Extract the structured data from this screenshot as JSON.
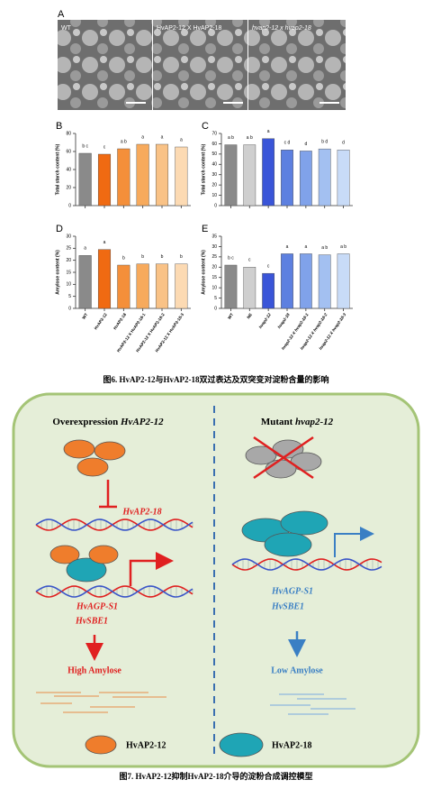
{
  "panel_a": {
    "label": "A",
    "images": [
      "WT",
      "HvAP2-12 X HvAP2-18",
      "hvap2-12 x hvap2-18"
    ]
  },
  "chart_data": [
    {
      "type": "bar",
      "panel": "B",
      "ylabel": "Total starch content (%)",
      "categories": [
        null,
        null,
        null,
        null,
        null,
        null
      ],
      "values": [
        58,
        57,
        63,
        68,
        68,
        65
      ],
      "letters": [
        "b c",
        "c",
        "a b",
        "a",
        "a",
        "a"
      ],
      "colors": [
        "#8a8a8a",
        "#f06a12",
        "#f48f3a",
        "#f7aa5c",
        "#f9c286",
        "#fcdab3"
      ],
      "ylim": [
        0,
        80
      ],
      "yticks": [
        0,
        20,
        40,
        60,
        80
      ]
    },
    {
      "type": "bar",
      "panel": "C",
      "ylabel": "Total starch content (%)",
      "categories": [
        null,
        null,
        null,
        null,
        null,
        null,
        null
      ],
      "values": [
        59,
        59,
        65,
        54,
        53,
        55,
        54
      ],
      "letters": [
        "a b",
        "a b",
        "a",
        "c d",
        "d",
        "b d",
        "d"
      ],
      "colors": [
        "#8a8a8a",
        "#cfcfcf",
        "#3a55d8",
        "#5d80e0",
        "#80a2ea",
        "#a3c0f1",
        "#c8dbf7"
      ],
      "ylim": [
        0,
        70
      ],
      "yticks": [
        0,
        10,
        20,
        30,
        40,
        50,
        60,
        70
      ]
    },
    {
      "type": "bar",
      "panel": "D",
      "ylabel": "Amylose content (%)",
      "categories": [
        "WT",
        "HvAP2-12",
        "HvAP2-18",
        "HvAP2-12 X HvAP2-18-1",
        "HvAP2-12 X HvAP2-18-2",
        "HvAP2-12 X HvAP2-18-3"
      ],
      "values": [
        22,
        24.5,
        18,
        18.5,
        18.5,
        18.5
      ],
      "letters": [
        "a",
        "a",
        "b",
        "b",
        "b",
        "b"
      ],
      "colors": [
        "#8a8a8a",
        "#f06a12",
        "#f48f3a",
        "#f7aa5c",
        "#f9c286",
        "#fcdab3"
      ],
      "ylim": [
        0,
        30
      ],
      "yticks": [
        0,
        5,
        10,
        15,
        20,
        25,
        30
      ]
    },
    {
      "type": "bar",
      "panel": "E",
      "ylabel": "Amylose content (%)",
      "categories": [
        "WT",
        "NE",
        "hvap2-12",
        "hvap2-18",
        "hvap2-12 X hvap2-18-1",
        "hvap2-12 X hvap2-18-2",
        "hvap2-12 X hvap2-18-3"
      ],
      "values": [
        21,
        20,
        17,
        26.5,
        26.5,
        26,
        26.5
      ],
      "letters": [
        "b c",
        "c",
        "c",
        "a",
        "a",
        "a b",
        "a b"
      ],
      "colors": [
        "#8a8a8a",
        "#cfcfcf",
        "#3a55d8",
        "#5d80e0",
        "#80a2ea",
        "#a3c0f1",
        "#c8dbf7"
      ],
      "ylim": [
        0,
        35
      ],
      "yticks": [
        0,
        5,
        10,
        15,
        20,
        25,
        30,
        35
      ]
    }
  ],
  "caption6": "图6. HvAP2-12与HvAP2-18双过表达及双突变对淀粉含量的影响",
  "model": {
    "left": {
      "heading": "Overexpression",
      "gene": "HvAP2-12",
      "target": "HvAP2-18",
      "genes": [
        "HvAGP-S1",
        "HvSBE1"
      ],
      "result": "High Amylose"
    },
    "right": {
      "heading": "Mutant",
      "gene": "hvap2-12",
      "genes": [
        "HvAGP-S1",
        "HvSBE1"
      ],
      "result": "Low Amylose"
    },
    "legend": [
      "HvAP2-12",
      "HvAP2-18"
    ]
  },
  "caption7": "图7. HvAP2-12抑制HvAP2-18介导的淀粉合成调控模型"
}
